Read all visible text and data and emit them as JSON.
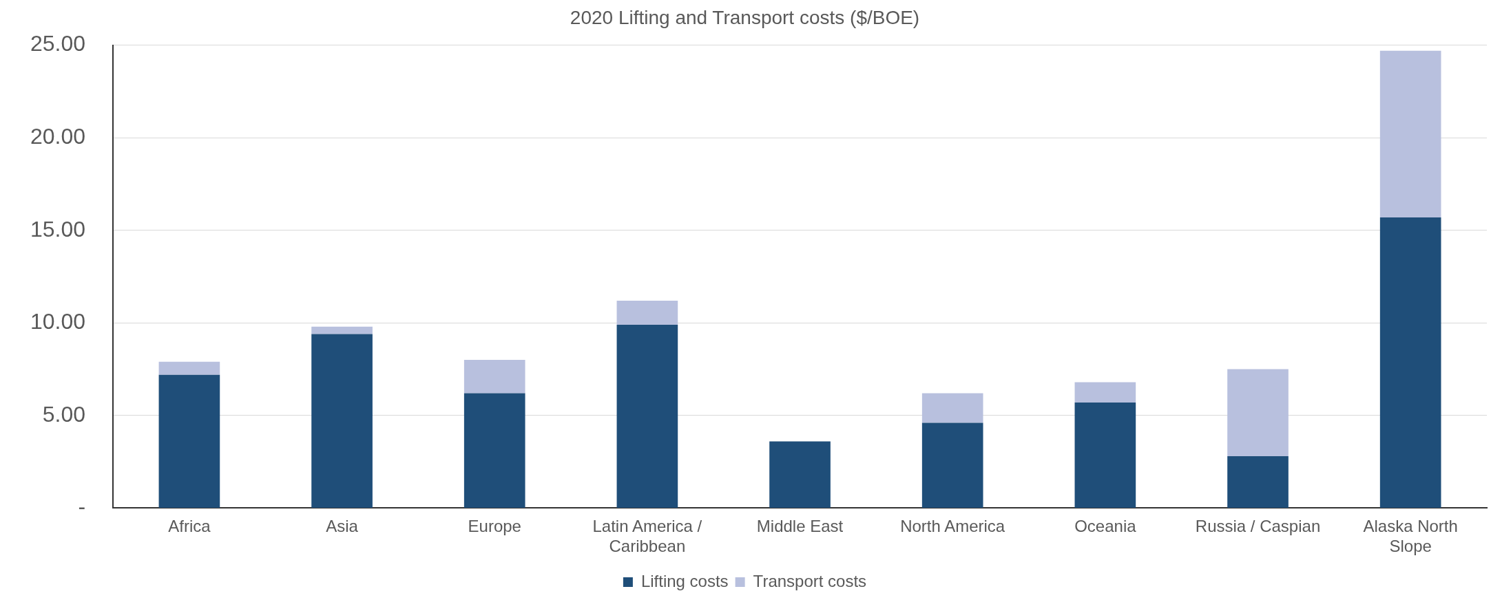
{
  "chart_data": {
    "type": "bar",
    "title": "2020 Lifting and Transport costs ($/BOE)",
    "stacked": true,
    "categories": [
      "Africa",
      "Asia",
      "Europe",
      "Latin America / Caribbean",
      "Middle East",
      "North America",
      "Oceania",
      "Russia / Caspian",
      "Alaska North Slope"
    ],
    "series": [
      {
        "name": "Lifting costs",
        "color": "#1f4e79",
        "values": [
          7.2,
          9.4,
          6.2,
          9.9,
          3.6,
          4.6,
          5.7,
          2.8,
          15.7
        ]
      },
      {
        "name": "Transport costs",
        "color": "#b8c0de",
        "values": [
          0.7,
          0.4,
          1.8,
          1.3,
          0.0,
          1.6,
          1.1,
          4.7,
          9.0
        ]
      }
    ],
    "ylim": [
      0,
      25
    ],
    "yticks": [
      {
        "value": 0,
        "label": "-"
      },
      {
        "value": 5,
        "label": "5.00"
      },
      {
        "value": 10,
        "label": "10.00"
      },
      {
        "value": 15,
        "label": "15.00"
      },
      {
        "value": 20,
        "label": "20.00"
      },
      {
        "value": 25,
        "label": "25.00"
      }
    ],
    "grid": "y",
    "legend": "bottom"
  }
}
